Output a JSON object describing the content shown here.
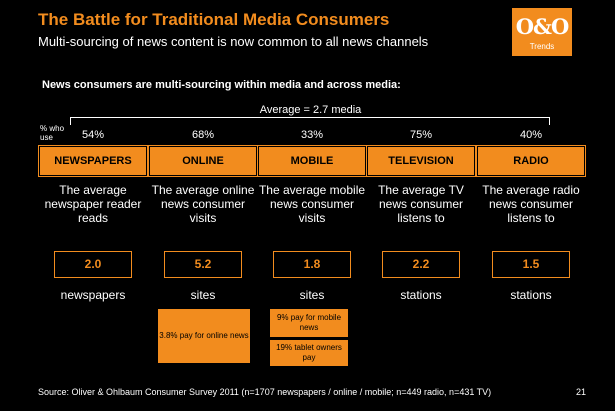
{
  "title": "The Battle for Traditional Media Consumers",
  "subtitle": "Multi-sourcing of news content is now common to all news channels",
  "logo": {
    "mark": "O&O",
    "sub": "Trends"
  },
  "lead": "News consumers are multi-sourcing within media and across media:",
  "average": "Average = 2.7 media",
  "who_use_label": "% who use",
  "columns": [
    {
      "pct": "54%",
      "head": "NEWSPAPERS",
      "desc": "The average newspaper reader reads",
      "value": "2.0",
      "unit": "newspapers"
    },
    {
      "pct": "68%",
      "head": "ONLINE",
      "desc": "The average online news consumer visits",
      "value": "5.2",
      "unit": "sites"
    },
    {
      "pct": "33%",
      "head": "MOBILE",
      "desc": "The average mobile news consumer visits",
      "value": "1.8",
      "unit": "sites"
    },
    {
      "pct": "75%",
      "head": "TELEVISION",
      "desc": "The average TV news consumer listens to",
      "value": "2.2",
      "unit": "stations"
    },
    {
      "pct": "40%",
      "head": "RADIO",
      "desc": "The average radio news consumer listens to",
      "value": "1.5",
      "unit": "stations"
    }
  ],
  "notes": {
    "online_pay": "3.8% pay for online news",
    "mobile_pay": "9% pay for mobile news",
    "tablet_pay": "19% tablet owners pay"
  },
  "colors": {
    "accent": "#F28C1E",
    "background": "#000000",
    "text": "#FFFFFF"
  },
  "footer": "Source: Oliver & Ohlbaum Consumer Survey 2011 (n=1707 newspapers / online / mobile; n=449 radio, n=431 TV)",
  "page_number": "21"
}
